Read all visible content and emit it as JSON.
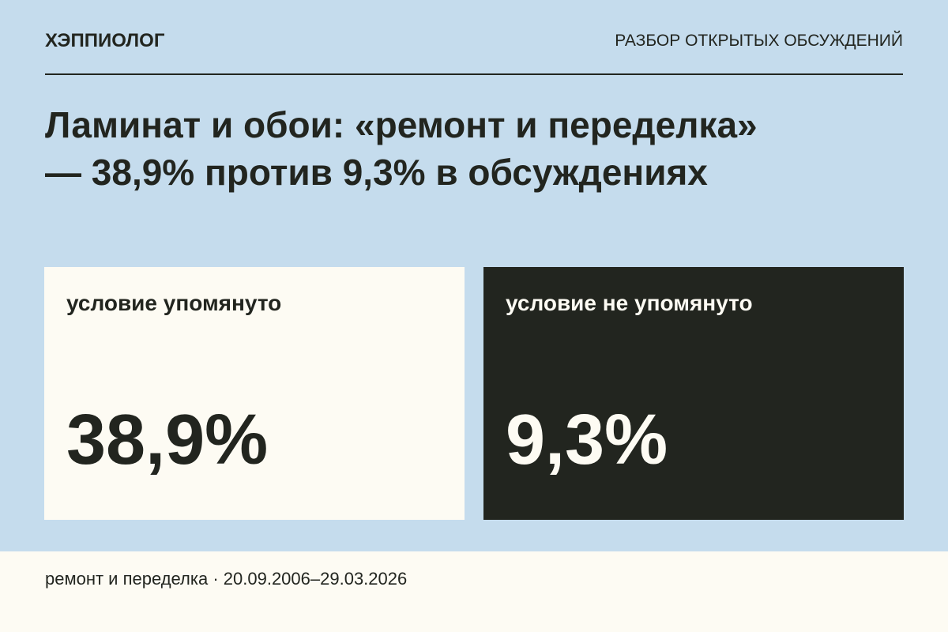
{
  "header": {
    "brand": "ХЭППИОЛОГ",
    "section": "РАЗБОР ОТКРЫТЫХ ОБСУЖДЕНИЙ"
  },
  "title": {
    "line1": "Ламинат и обои: «ремонт и переделка»",
    "line2": "— 38,9% против 9,3% в обсуждениях"
  },
  "cards": [
    {
      "label": "условие упомянуто",
      "value": "38,9%"
    },
    {
      "label": "условие не упомянуто",
      "value": "9,3%"
    }
  ],
  "footer": {
    "text": "ремонт и переделка · 20.09.2006–29.03.2026"
  }
}
